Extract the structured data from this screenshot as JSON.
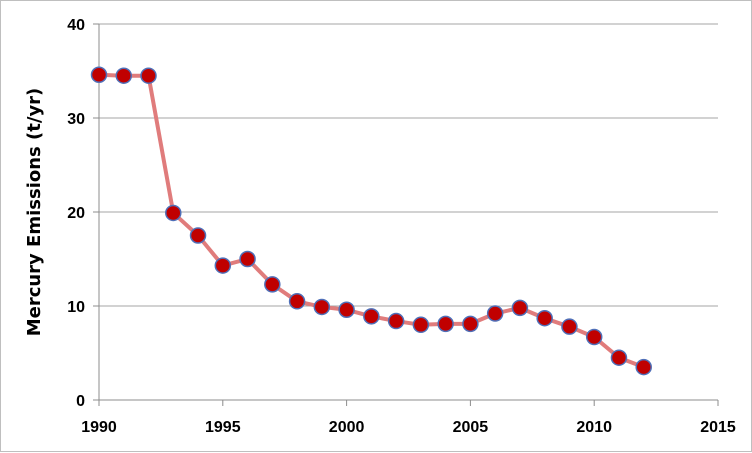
{
  "colors": {
    "line": "#e07c7c",
    "marker_fill": "#c00000",
    "marker_stroke": "#4f6fb8",
    "grid": "#a6a6a6",
    "axis": "#8c8c8c"
  },
  "chart_data": {
    "type": "line",
    "title": "",
    "xlabel": "",
    "ylabel": "Mercury Emissions (t/yr)",
    "xlim": [
      1990,
      2015
    ],
    "ylim": [
      0,
      40
    ],
    "x_ticks": [
      1990,
      1995,
      2000,
      2005,
      2010,
      2015
    ],
    "y_ticks": [
      0,
      10,
      20,
      30,
      40
    ],
    "grid": "horizontal major gridlines",
    "legend": "none",
    "series": [
      {
        "x": [
          1990,
          1991,
          1992,
          1993,
          1994,
          1995,
          1996,
          1997,
          1998,
          1999,
          2000,
          2001,
          2002,
          2003,
          2004,
          2005,
          2006,
          2007,
          2008,
          2009,
          2010,
          2011,
          2012
        ],
        "y": [
          34.6,
          34.5,
          34.5,
          19.9,
          17.5,
          14.3,
          15.0,
          12.3,
          10.5,
          9.9,
          9.6,
          8.9,
          8.4,
          8.0,
          8.1,
          8.1,
          9.2,
          9.8,
          8.7,
          7.8,
          6.7,
          4.5,
          3.5
        ]
      }
    ]
  }
}
